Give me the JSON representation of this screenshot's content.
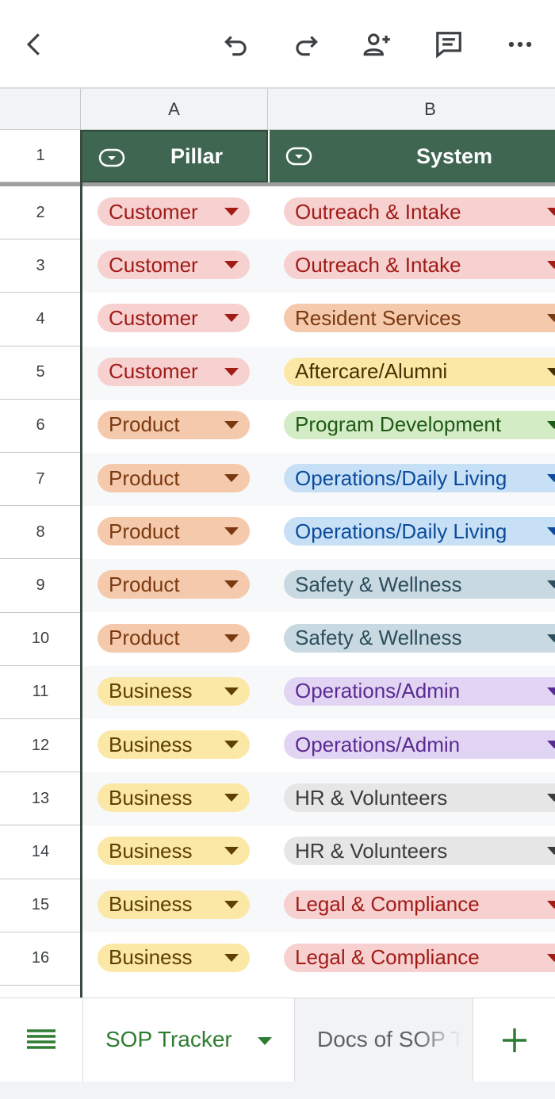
{
  "sheet": {
    "columns": [
      "A",
      "B"
    ],
    "headers": {
      "pillar": "Pillar",
      "system": "System"
    },
    "rows": [
      {
        "num": "2",
        "pillar": "Customer",
        "system": "Outreach & Intake"
      },
      {
        "num": "3",
        "pillar": "Customer",
        "system": "Outreach & Intake"
      },
      {
        "num": "4",
        "pillar": "Customer",
        "system": "Resident Services"
      },
      {
        "num": "5",
        "pillar": "Customer",
        "system": "Aftercare/Alumni"
      },
      {
        "num": "6",
        "pillar": "Product",
        "system": "Program Development"
      },
      {
        "num": "7",
        "pillar": "Product",
        "system": "Operations/Daily Living"
      },
      {
        "num": "8",
        "pillar": "Product",
        "system": "Operations/Daily Living"
      },
      {
        "num": "9",
        "pillar": "Product",
        "system": "Safety & Wellness"
      },
      {
        "num": "10",
        "pillar": "Product",
        "system": "Safety & Wellness"
      },
      {
        "num": "11",
        "pillar": "Business",
        "system": "Operations/Admin"
      },
      {
        "num": "12",
        "pillar": "Business",
        "system": "Operations/Admin"
      },
      {
        "num": "13",
        "pillar": "Business",
        "system": "HR & Volunteers"
      },
      {
        "num": "14",
        "pillar": "Business",
        "system": "HR & Volunteers"
      },
      {
        "num": "15",
        "pillar": "Business",
        "system": "Legal & Compliance"
      },
      {
        "num": "16",
        "pillar": "Business",
        "system": "Legal & Compliance"
      }
    ],
    "header_row_num": "1"
  },
  "tabs": {
    "active": "SOP Tracker",
    "other": "Docs of SOP Tracker"
  },
  "icons": {
    "back": "back-arrow-icon",
    "undo": "undo-icon",
    "redo": "redo-icon",
    "share": "add-person-icon",
    "comment": "comment-icon",
    "more": "more-horizontal-icon",
    "filter": "filter-dropdown-icon",
    "menu": "sheet-list-icon",
    "add": "plus-icon"
  },
  "colors": {
    "header_bg": "#3f6650",
    "accent_green": "#2e7d32",
    "pillar": {
      "Customer": {
        "bg": "#f6d1d0",
        "fg": "#a11b17"
      },
      "Product": {
        "bg": "#f5c9ac",
        "fg": "#7a3a11"
      },
      "Business": {
        "bg": "#fbe8a6",
        "fg": "#5e4000"
      }
    },
    "system": {
      "Outreach & Intake": {
        "bg": "#f6d1d0",
        "fg": "#a11b17"
      },
      "Resident Services": {
        "bg": "#f5c9ac",
        "fg": "#7a3a11"
      },
      "Aftercare/Alumni": {
        "bg": "#fbe8a6",
        "fg": "#473100"
      },
      "Program Development": {
        "bg": "#d4ecc5",
        "fg": "#1f5a16"
      },
      "Operations/Daily Living": {
        "bg": "#c7e0f6",
        "fg": "#0b4b9c"
      },
      "Safety & Wellness": {
        "bg": "#c9d9e1",
        "fg": "#2c4e5c"
      },
      "Operations/Admin": {
        "bg": "#e2d5f3",
        "fg": "#5a2a93"
      },
      "HR & Volunteers": {
        "bg": "#e6e6e6",
        "fg": "#3c3c3c"
      },
      "Legal & Compliance": {
        "bg": "#f6d1d0",
        "fg": "#a11b17"
      }
    }
  }
}
